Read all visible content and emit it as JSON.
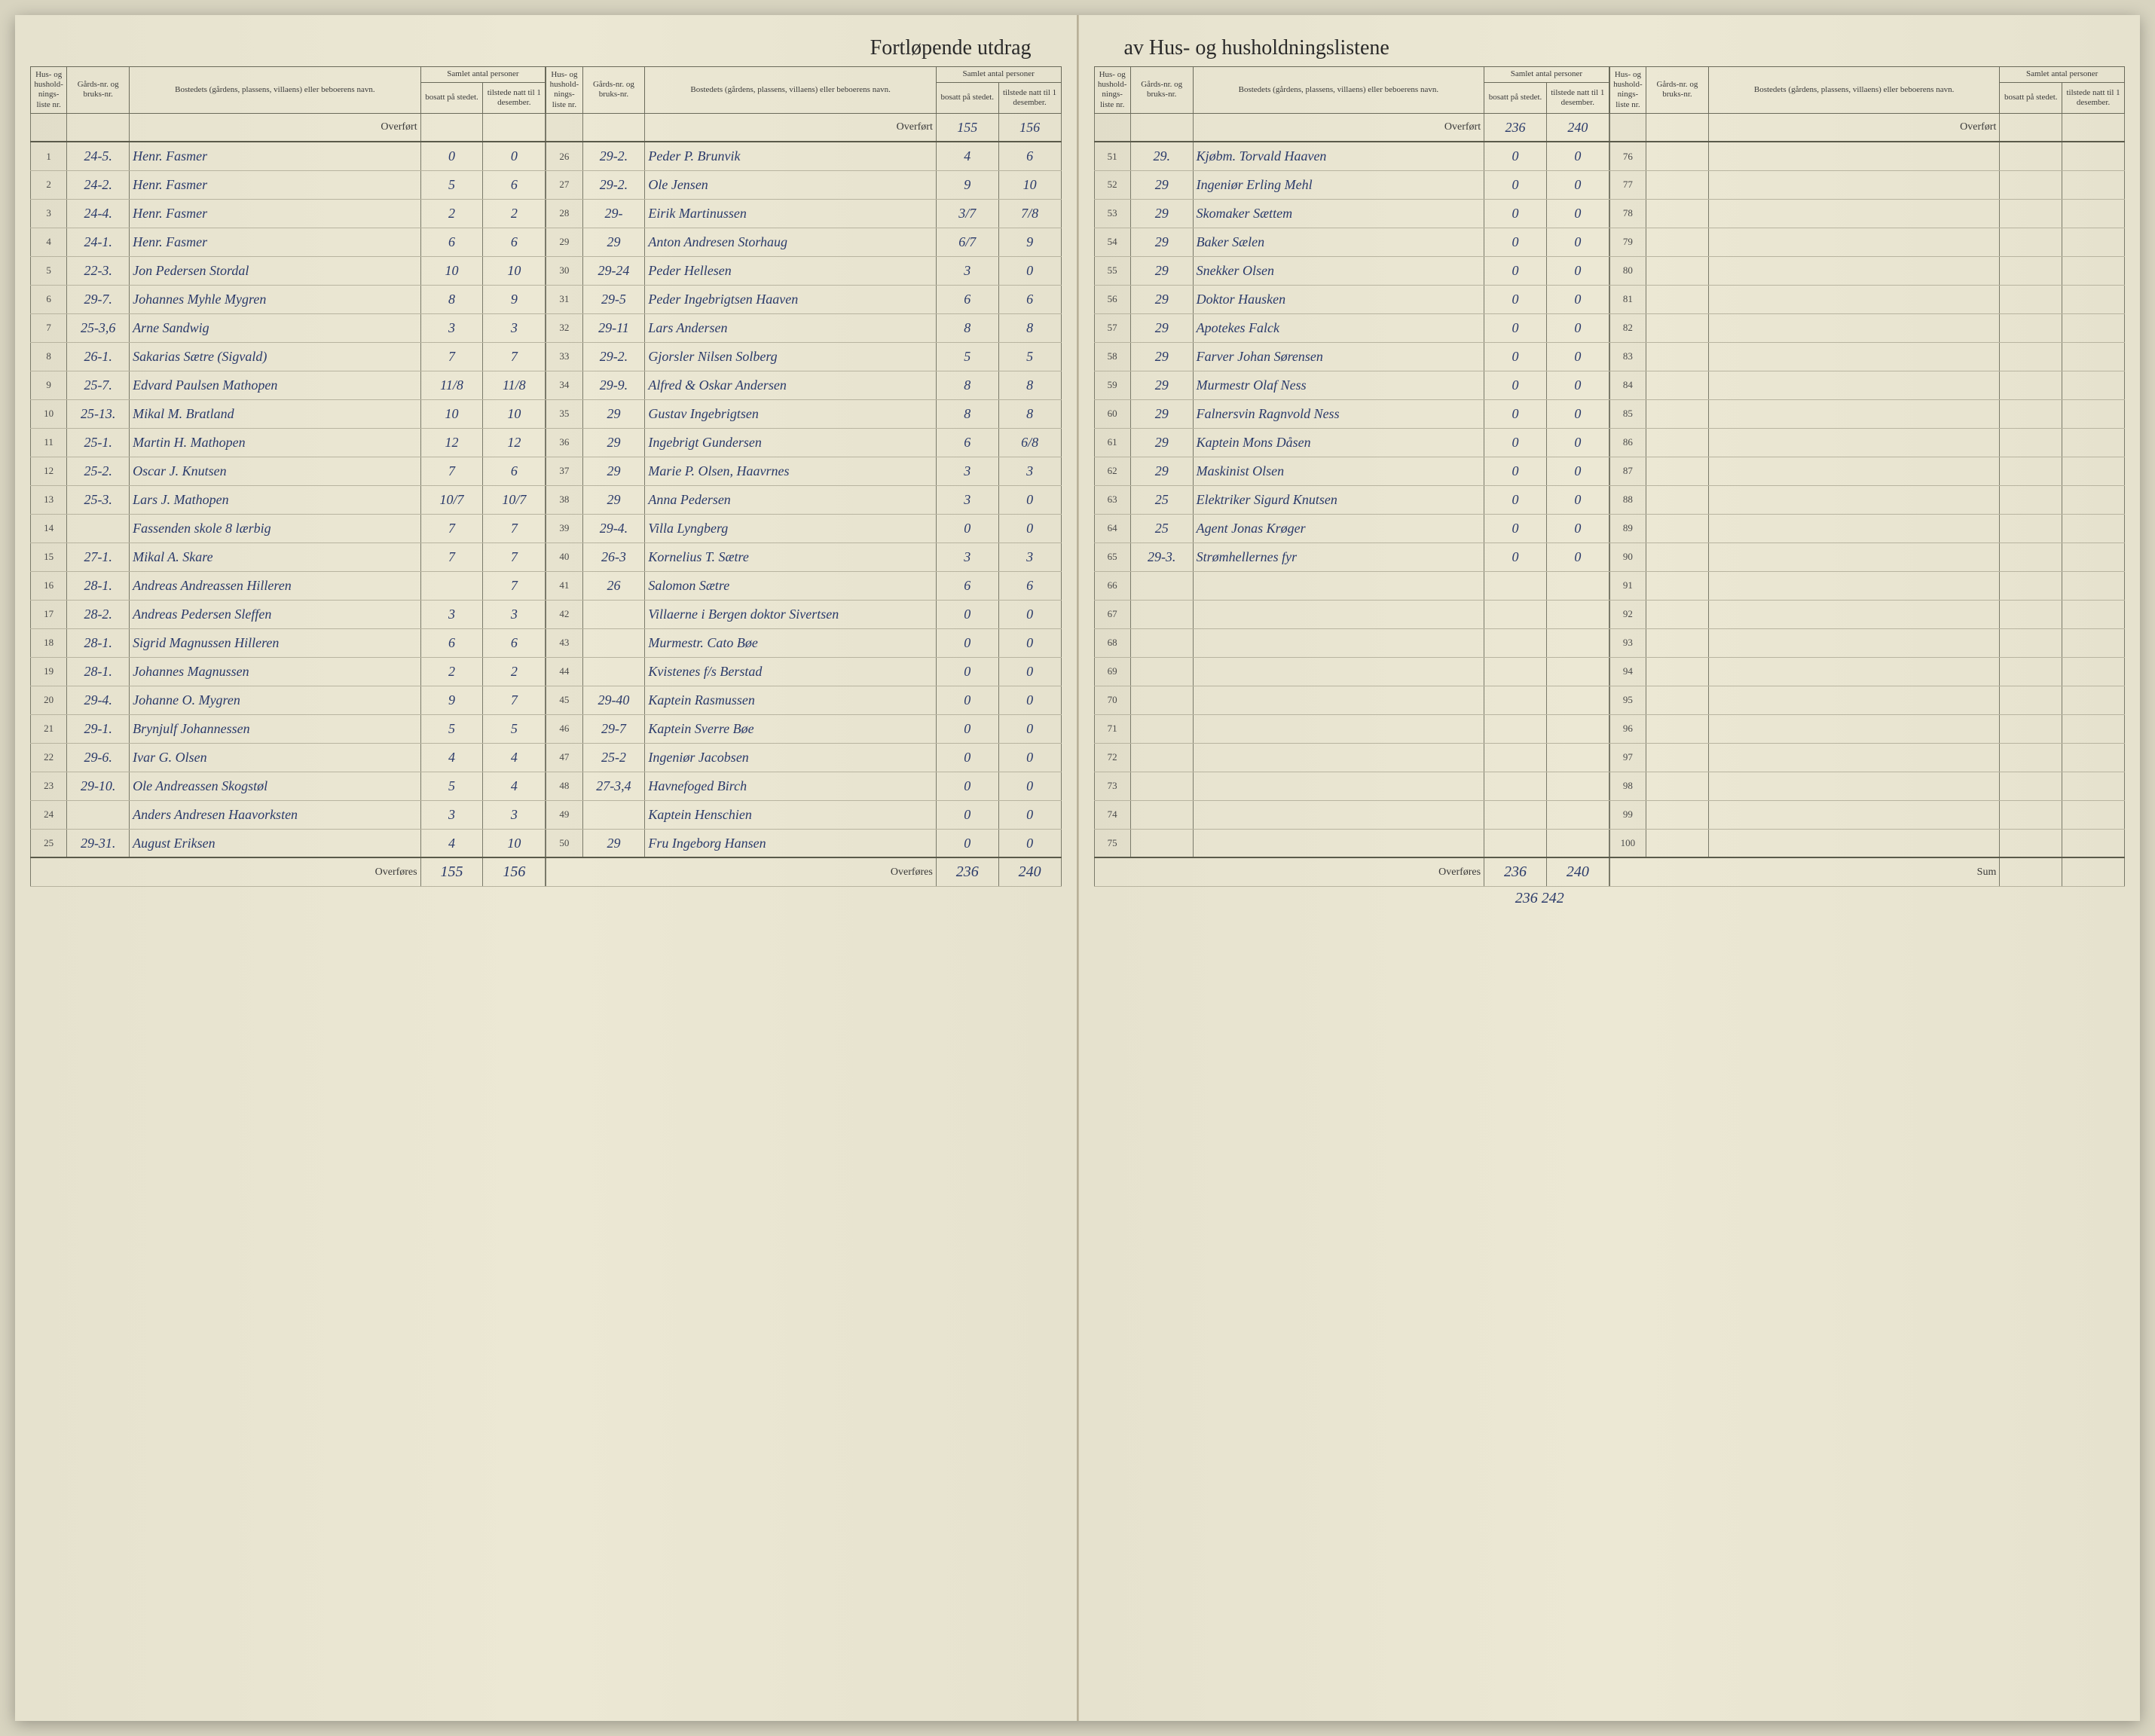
{
  "title_left": "Fortløpende utdrag",
  "title_right": "av Hus- og husholdningslistene",
  "headers": {
    "idx": "Hus- og hushold-nings-liste nr.",
    "gard": "Gårds-nr. og bruks-nr.",
    "name": "Bostedets (gårdens, plassens, villaens) eller beboerens navn.",
    "persons_group": "Samlet antal personer",
    "bosatt": "bosatt på stedet.",
    "tilstede": "tilstede natt til 1 desember."
  },
  "carry_label": "Overført",
  "footer_label": "Overføres",
  "sum_label": "Sum",
  "columns": [
    {
      "start": 1,
      "carry": [
        "",
        ""
      ],
      "rows": [
        {
          "g": "24-5.",
          "n": "Henr. Fasmer",
          "b": "0",
          "t": "0"
        },
        {
          "g": "24-2.",
          "n": "Henr. Fasmer",
          "b": "5",
          "t": "6"
        },
        {
          "g": "24-4.",
          "n": "Henr. Fasmer",
          "b": "2",
          "t": "2"
        },
        {
          "g": "24-1.",
          "n": "Henr. Fasmer",
          "b": "6",
          "t": "6"
        },
        {
          "g": "22-3.",
          "n": "Jon Pedersen Stordal",
          "b": "10",
          "t": "10"
        },
        {
          "g": "29-7.",
          "n": "Johannes Myhle Mygren",
          "b": "8",
          "t": "9"
        },
        {
          "g": "25-3,6",
          "n": "Arne Sandwig",
          "b": "3",
          "t": "3"
        },
        {
          "g": "26-1.",
          "n": "Sakarias Sætre (Sigvald)",
          "b": "7",
          "t": "7"
        },
        {
          "g": "25-7.",
          "n": "Edvard Paulsen Mathopen",
          "b": "11/8",
          "t": "11/8"
        },
        {
          "g": "25-13.",
          "n": "Mikal M. Bratland",
          "b": "10",
          "t": "10"
        },
        {
          "g": "25-1.",
          "n": "Martin H. Mathopen",
          "b": "12",
          "t": "12"
        },
        {
          "g": "25-2.",
          "n": "Oscar J. Knutsen",
          "b": "7",
          "t": "6"
        },
        {
          "g": "25-3.",
          "n": "Lars J. Mathopen",
          "b": "10/7",
          "t": "10/7"
        },
        {
          "g": "",
          "n": "Fassenden skole 8 lærbig",
          "b": "7",
          "t": "7"
        },
        {
          "g": "27-1.",
          "n": "Mikal A. Skare",
          "b": "7",
          "t": "7"
        },
        {
          "g": "28-1.",
          "n": "Andreas Andreassen Hilleren",
          "b": "",
          "t": "7"
        },
        {
          "g": "28-2.",
          "n": "Andreas Pedersen Sleffen",
          "b": "3",
          "t": "3"
        },
        {
          "g": "28-1.",
          "n": "Sigrid Magnussen Hilleren",
          "b": "6",
          "t": "6"
        },
        {
          "g": "28-1.",
          "n": "Johannes Magnussen",
          "b": "2",
          "t": "2"
        },
        {
          "g": "29-4.",
          "n": "Johanne O. Mygren",
          "b": "9",
          "t": "7"
        },
        {
          "g": "29-1.",
          "n": "Brynjulf Johannessen",
          "b": "5",
          "t": "5"
        },
        {
          "g": "29-6.",
          "n": "Ivar G. Olsen",
          "b": "4",
          "t": "4"
        },
        {
          "g": "29-10.",
          "n": "Ole Andreassen Skogstøl",
          "b": "5",
          "t": "4"
        },
        {
          "g": "",
          "n": "Anders Andresen Haavorksten",
          "b": "3",
          "t": "3"
        },
        {
          "g": "29-31.",
          "n": "August Eriksen",
          "b": "4",
          "t": "10"
        }
      ],
      "footer": [
        "155",
        "156"
      ]
    },
    {
      "start": 26,
      "carry": [
        "155",
        "156"
      ],
      "rows": [
        {
          "g": "29-2.",
          "n": "Peder P. Brunvik",
          "b": "4",
          "t": "6"
        },
        {
          "g": "29-2.",
          "n": "Ole Jensen",
          "b": "9",
          "t": "10"
        },
        {
          "g": "29-",
          "n": "Eirik Martinussen",
          "b": "3/7",
          "t": "7/8"
        },
        {
          "g": "29",
          "n": "Anton Andresen Storhaug",
          "b": "6/7",
          "t": "9"
        },
        {
          "g": "29-24",
          "n": "Peder Hellesen",
          "b": "3",
          "t": "0"
        },
        {
          "g": "29-5",
          "n": "Peder Ingebrigtsen Haaven",
          "b": "6",
          "t": "6"
        },
        {
          "g": "29-11",
          "n": "Lars Andersen",
          "b": "8",
          "t": "8"
        },
        {
          "g": "29-2.",
          "n": "Gjorsler Nilsen Solberg",
          "b": "5",
          "t": "5"
        },
        {
          "g": "29-9.",
          "n": "Alfred & Oskar Andersen",
          "b": "8",
          "t": "8"
        },
        {
          "g": "29",
          "n": "Gustav Ingebrigtsen",
          "b": "8",
          "t": "8"
        },
        {
          "g": "29",
          "n": "Ingebrigt Gundersen",
          "b": "6",
          "t": "6/8"
        },
        {
          "g": "29",
          "n": "Marie P. Olsen, Haavrnes",
          "b": "3",
          "t": "3"
        },
        {
          "g": "29",
          "n": "Anna Pedersen",
          "b": "3",
          "t": "0"
        },
        {
          "g": "29-4.",
          "n": "Villa Lyngberg",
          "b": "0",
          "t": "0"
        },
        {
          "g": "26-3",
          "n": "Kornelius T. Sætre",
          "b": "3",
          "t": "3"
        },
        {
          "g": "26",
          "n": "Salomon Sætre",
          "b": "6",
          "t": "6"
        },
        {
          "g": "",
          "n": "Villaerne i Bergen doktor Sivertsen",
          "b": "0",
          "t": "0"
        },
        {
          "g": "",
          "n": "Murmestr. Cato Bøe",
          "b": "0",
          "t": "0"
        },
        {
          "g": "",
          "n": "Kvistenes f/s Berstad",
          "b": "0",
          "t": "0"
        },
        {
          "g": "29-40",
          "n": "Kaptein Rasmussen",
          "b": "0",
          "t": "0"
        },
        {
          "g": "29-7",
          "n": "Kaptein Sverre Bøe",
          "b": "0",
          "t": "0"
        },
        {
          "g": "25-2",
          "n": "Ingeniør Jacobsen",
          "b": "0",
          "t": "0"
        },
        {
          "g": "27-3,4",
          "n": "Havnefoged Birch",
          "b": "0",
          "t": "0"
        },
        {
          "g": "",
          "n": "Kaptein Henschien",
          "b": "0",
          "t": "0"
        },
        {
          "g": "29",
          "n": "Fru Ingeborg Hansen",
          "b": "0",
          "t": "0"
        }
      ],
      "footer": [
        "236",
        "240"
      ]
    },
    {
      "start": 51,
      "carry": [
        "236",
        "240"
      ],
      "rows": [
        {
          "g": "29.",
          "n": "Kjøbm. Torvald Haaven",
          "b": "0",
          "t": "0"
        },
        {
          "g": "29",
          "n": "Ingeniør Erling Mehl",
          "b": "0",
          "t": "0"
        },
        {
          "g": "29",
          "n": "Skomaker Sættem",
          "b": "0",
          "t": "0"
        },
        {
          "g": "29",
          "n": "Baker Sælen",
          "b": "0",
          "t": "0"
        },
        {
          "g": "29",
          "n": "Snekker Olsen",
          "b": "0",
          "t": "0"
        },
        {
          "g": "29",
          "n": "Doktor Hausken",
          "b": "0",
          "t": "0"
        },
        {
          "g": "29",
          "n": "Apotekes Falck",
          "b": "0",
          "t": "0"
        },
        {
          "g": "29",
          "n": "Farver Johan Sørensen",
          "b": "0",
          "t": "0"
        },
        {
          "g": "29",
          "n": "Murmestr Olaf Ness",
          "b": "0",
          "t": "0"
        },
        {
          "g": "29",
          "n": "Falnersvin Ragnvold Ness",
          "b": "0",
          "t": "0"
        },
        {
          "g": "29",
          "n": "Kaptein Mons Dåsen",
          "b": "0",
          "t": "0"
        },
        {
          "g": "29",
          "n": "Maskinist Olsen",
          "b": "0",
          "t": "0"
        },
        {
          "g": "25",
          "n": "Elektriker Sigurd Knutsen",
          "b": "0",
          "t": "0"
        },
        {
          "g": "25",
          "n": "Agent Jonas Krøger",
          "b": "0",
          "t": "0"
        },
        {
          "g": "29-3.",
          "n": "Strømhellernes fyr",
          "b": "0",
          "t": "0"
        },
        {
          "g": "",
          "n": "",
          "b": "",
          "t": ""
        },
        {
          "g": "",
          "n": "",
          "b": "",
          "t": ""
        },
        {
          "g": "",
          "n": "",
          "b": "",
          "t": ""
        },
        {
          "g": "",
          "n": "",
          "b": "",
          "t": ""
        },
        {
          "g": "",
          "n": "",
          "b": "",
          "t": ""
        },
        {
          "g": "",
          "n": "",
          "b": "",
          "t": ""
        },
        {
          "g": "",
          "n": "",
          "b": "",
          "t": ""
        },
        {
          "g": "",
          "n": "",
          "b": "",
          "t": ""
        },
        {
          "g": "",
          "n": "",
          "b": "",
          "t": ""
        },
        {
          "g": "",
          "n": "",
          "b": "",
          "t": ""
        }
      ],
      "footer": [
        "236",
        "240"
      ],
      "below": "236 242"
    },
    {
      "start": 76,
      "carry": [
        "",
        ""
      ],
      "rows": [
        {
          "g": "",
          "n": "",
          "b": "",
          "t": ""
        },
        {
          "g": "",
          "n": "",
          "b": "",
          "t": ""
        },
        {
          "g": "",
          "n": "",
          "b": "",
          "t": ""
        },
        {
          "g": "",
          "n": "",
          "b": "",
          "t": ""
        },
        {
          "g": "",
          "n": "",
          "b": "",
          "t": ""
        },
        {
          "g": "",
          "n": "",
          "b": "",
          "t": ""
        },
        {
          "g": "",
          "n": "",
          "b": "",
          "t": ""
        },
        {
          "g": "",
          "n": "",
          "b": "",
          "t": ""
        },
        {
          "g": "",
          "n": "",
          "b": "",
          "t": ""
        },
        {
          "g": "",
          "n": "",
          "b": "",
          "t": ""
        },
        {
          "g": "",
          "n": "",
          "b": "",
          "t": ""
        },
        {
          "g": "",
          "n": "",
          "b": "",
          "t": ""
        },
        {
          "g": "",
          "n": "",
          "b": "",
          "t": ""
        },
        {
          "g": "",
          "n": "",
          "b": "",
          "t": ""
        },
        {
          "g": "",
          "n": "",
          "b": "",
          "t": ""
        },
        {
          "g": "",
          "n": "",
          "b": "",
          "t": ""
        },
        {
          "g": "",
          "n": "",
          "b": "",
          "t": ""
        },
        {
          "g": "",
          "n": "",
          "b": "",
          "t": ""
        },
        {
          "g": "",
          "n": "",
          "b": "",
          "t": ""
        },
        {
          "g": "",
          "n": "",
          "b": "",
          "t": ""
        },
        {
          "g": "",
          "n": "",
          "b": "",
          "t": ""
        },
        {
          "g": "",
          "n": "",
          "b": "",
          "t": ""
        },
        {
          "g": "",
          "n": "",
          "b": "",
          "t": ""
        },
        {
          "g": "",
          "n": "",
          "b": "",
          "t": ""
        },
        {
          "g": "",
          "n": "",
          "b": "",
          "t": ""
        }
      ],
      "footer": [
        "",
        ""
      ],
      "is_sum": true
    }
  ]
}
